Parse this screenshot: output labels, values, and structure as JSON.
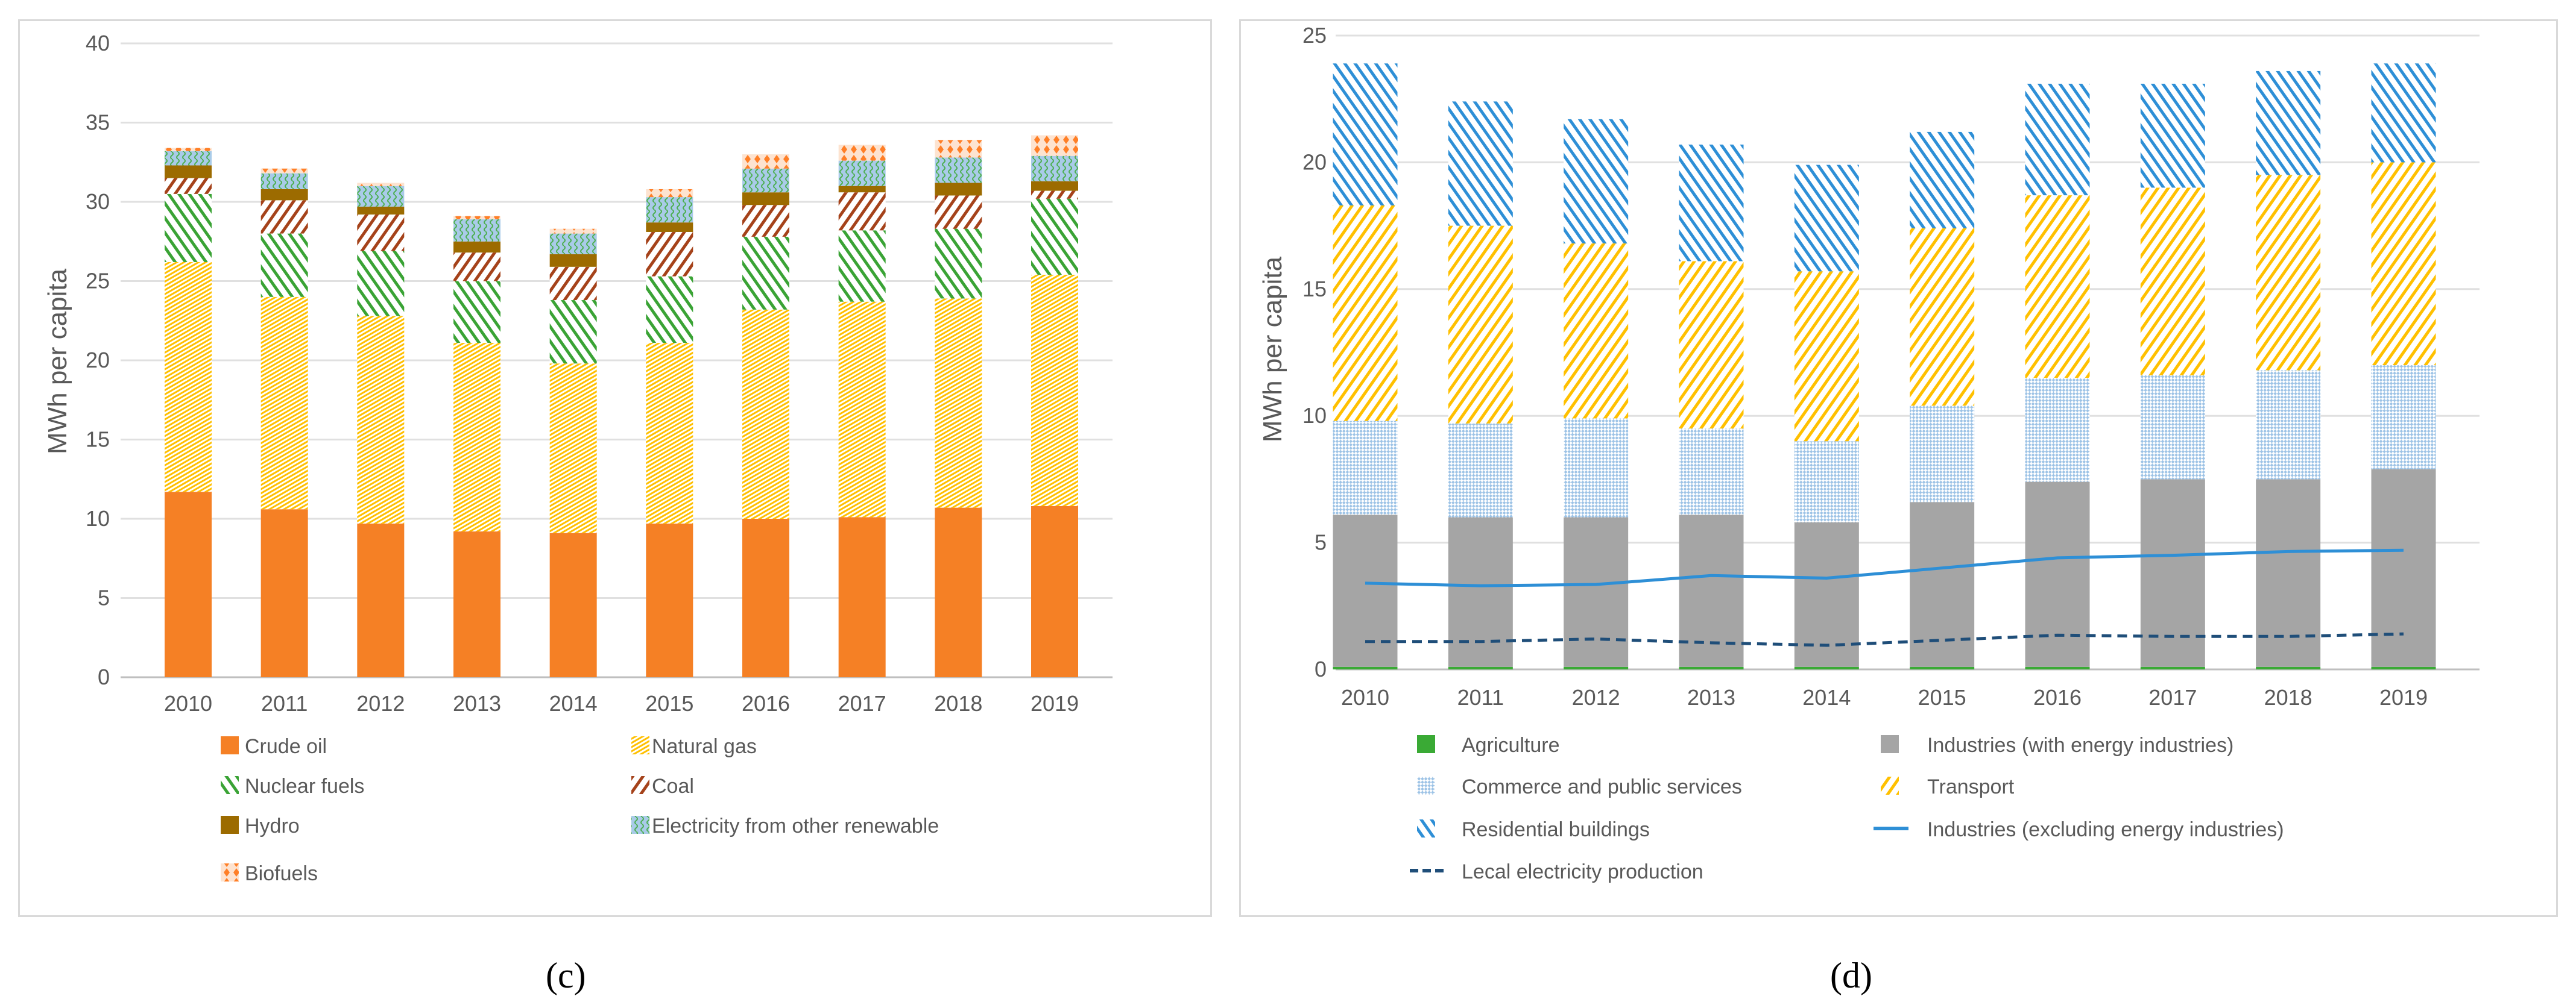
{
  "chart_data": [
    {
      "type": "bar",
      "stacked": true,
      "panel_label": "(c)",
      "categories": [
        "2010",
        "2011",
        "2012",
        "2013",
        "2014",
        "2015",
        "2016",
        "2017",
        "2018",
        "2019"
      ],
      "ylabel": "MWh per capita",
      "xlabel": "",
      "ylim": [
        0,
        40
      ],
      "yticks": [
        "0",
        "5",
        "10",
        "15",
        "20",
        "25",
        "30",
        "35",
        "40"
      ],
      "grid": true,
      "legend_position": "bottom",
      "series": [
        {
          "name": "Crude oil",
          "color": "#f58025",
          "pattern": "solid",
          "values": [
            11.7,
            10.6,
            9.7,
            9.2,
            9.1,
            9.7,
            10.0,
            10.1,
            10.7,
            10.8
          ]
        },
        {
          "name": "Natural gas",
          "color": "#ffc000",
          "pattern": "fine-dots",
          "values": [
            14.5,
            13.4,
            13.1,
            11.9,
            10.7,
            11.4,
            13.2,
            13.6,
            13.2,
            14.6
          ]
        },
        {
          "name": "Nuclear fuels",
          "color": "#3aa335",
          "pattern": "wide-downward-diagonal",
          "values": [
            4.3,
            4.0,
            4.1,
            3.9,
            4.0,
            4.2,
            4.6,
            4.5,
            4.4,
            4.8
          ]
        },
        {
          "name": "Coal",
          "color": "#a5421a",
          "pattern": "wide-upward-diagonal",
          "values": [
            1.0,
            2.1,
            2.3,
            1.8,
            2.1,
            2.8,
            2.0,
            2.4,
            2.1,
            0.5
          ]
        },
        {
          "name": "Hydro",
          "color": "#9c6b00",
          "pattern": "solid",
          "values": [
            0.8,
            0.7,
            0.5,
            0.7,
            0.8,
            0.6,
            0.8,
            0.4,
            0.8,
            0.6
          ]
        },
        {
          "name": "Electricity from other renewable",
          "color": "#7fb0c8",
          "pattern": "wave",
          "values": [
            0.9,
            1.0,
            1.3,
            1.4,
            1.3,
            1.6,
            1.5,
            1.6,
            1.6,
            1.6
          ]
        },
        {
          "name": "Biofuels",
          "color": "#ff7f27",
          "pattern": "diamonds",
          "values": [
            0.2,
            0.3,
            0.2,
            0.2,
            0.3,
            0.5,
            0.9,
            1.0,
            1.1,
            1.3
          ]
        }
      ]
    },
    {
      "type": "bar",
      "stacked": true,
      "panel_label": "(d)",
      "categories": [
        "2010",
        "2011",
        "2012",
        "2013",
        "2014",
        "2015",
        "2016",
        "2017",
        "2018",
        "2019"
      ],
      "ylabel": "MWh per capita",
      "xlabel": "",
      "ylim": [
        0,
        25
      ],
      "yticks": [
        "0",
        "5",
        "10",
        "15",
        "20",
        "25"
      ],
      "grid": true,
      "legend_position": "bottom",
      "series": [
        {
          "name": "Agriculture",
          "color": "#3aaa35",
          "pattern": "solid",
          "values": [
            0.1,
            0.1,
            0.1,
            0.1,
            0.1,
            0.1,
            0.1,
            0.1,
            0.1,
            0.1
          ]
        },
        {
          "name": "Industries (with energy industries)",
          "color": "#a5a5a5",
          "pattern": "solid",
          "values": [
            6.0,
            5.9,
            5.9,
            6.0,
            5.7,
            6.5,
            7.3,
            7.4,
            7.4,
            7.8
          ]
        },
        {
          "name": "Commerce and public services",
          "color": "#9dc3e6",
          "pattern": "checker",
          "values": [
            3.7,
            3.7,
            3.9,
            3.4,
            3.2,
            3.8,
            4.1,
            4.1,
            4.3,
            4.1
          ]
        },
        {
          "name": "Transport",
          "color": "#ffc000",
          "pattern": "wide-upward-diagonal",
          "values": [
            8.5,
            7.8,
            6.9,
            6.6,
            6.7,
            7.0,
            7.2,
            7.4,
            7.7,
            8.0
          ]
        },
        {
          "name": "Residential buildings",
          "color": "#2e8fd6",
          "pattern": "wide-downward-diagonal",
          "values": [
            5.6,
            4.9,
            4.9,
            4.6,
            4.2,
            3.8,
            4.4,
            4.1,
            4.1,
            3.9
          ]
        }
      ],
      "lines": [
        {
          "name": "Industries (excluding energy industries)",
          "color": "#2e8fd6",
          "style": "solid",
          "values": [
            3.4,
            3.3,
            3.35,
            3.7,
            3.6,
            4.0,
            4.4,
            4.5,
            4.65,
            4.7
          ]
        },
        {
          "name": "Lecal electricity production",
          "color": "#1f4e79",
          "style": "dashed",
          "values": [
            1.1,
            1.1,
            1.2,
            1.05,
            0.95,
            1.15,
            1.35,
            1.3,
            1.3,
            1.4
          ]
        }
      ],
      "legend_order": [
        "Agriculture",
        "Industries (with energy industries)",
        "Commerce and public services",
        "Transport",
        "Residential buildings",
        "Industries (excluding energy industries)",
        "Lecal electricity production"
      ]
    }
  ]
}
